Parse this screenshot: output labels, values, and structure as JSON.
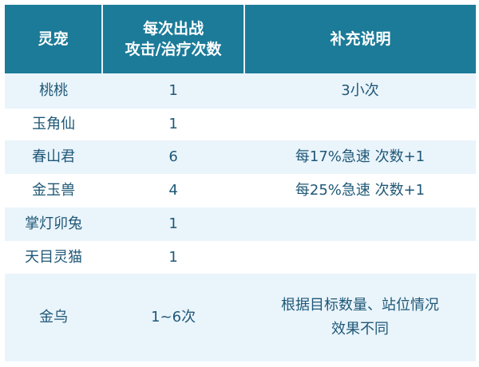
{
  "header": {
    "col1": "灵宠",
    "col2_line1": "每次出战",
    "col2_line2": "攻击/治疗次数",
    "col3": "补充说明"
  },
  "rows": [
    {
      "pet": "桃桃",
      "count": "1",
      "note": "3小次"
    },
    {
      "pet": "玉角仙",
      "count": "1",
      "note": ""
    },
    {
      "pet": "春山君",
      "count": "6",
      "note": "每17%急速 次数+1"
    },
    {
      "pet": "金玉兽",
      "count": "4",
      "note": "每25%急速 次数+1"
    },
    {
      "pet": "掌灯卯兔",
      "count": "1",
      "note": ""
    },
    {
      "pet": "天目灵猫",
      "count": "1",
      "note": ""
    },
    {
      "pet": "金乌",
      "count": "1~6次",
      "note_line1": "根据目标数量、站位情况",
      "note_line2": "效果不同"
    }
  ],
  "colors": {
    "header_bg": "#1b7b99",
    "row_alt_bg": "#eaf4fb",
    "text": "#1f5877"
  }
}
